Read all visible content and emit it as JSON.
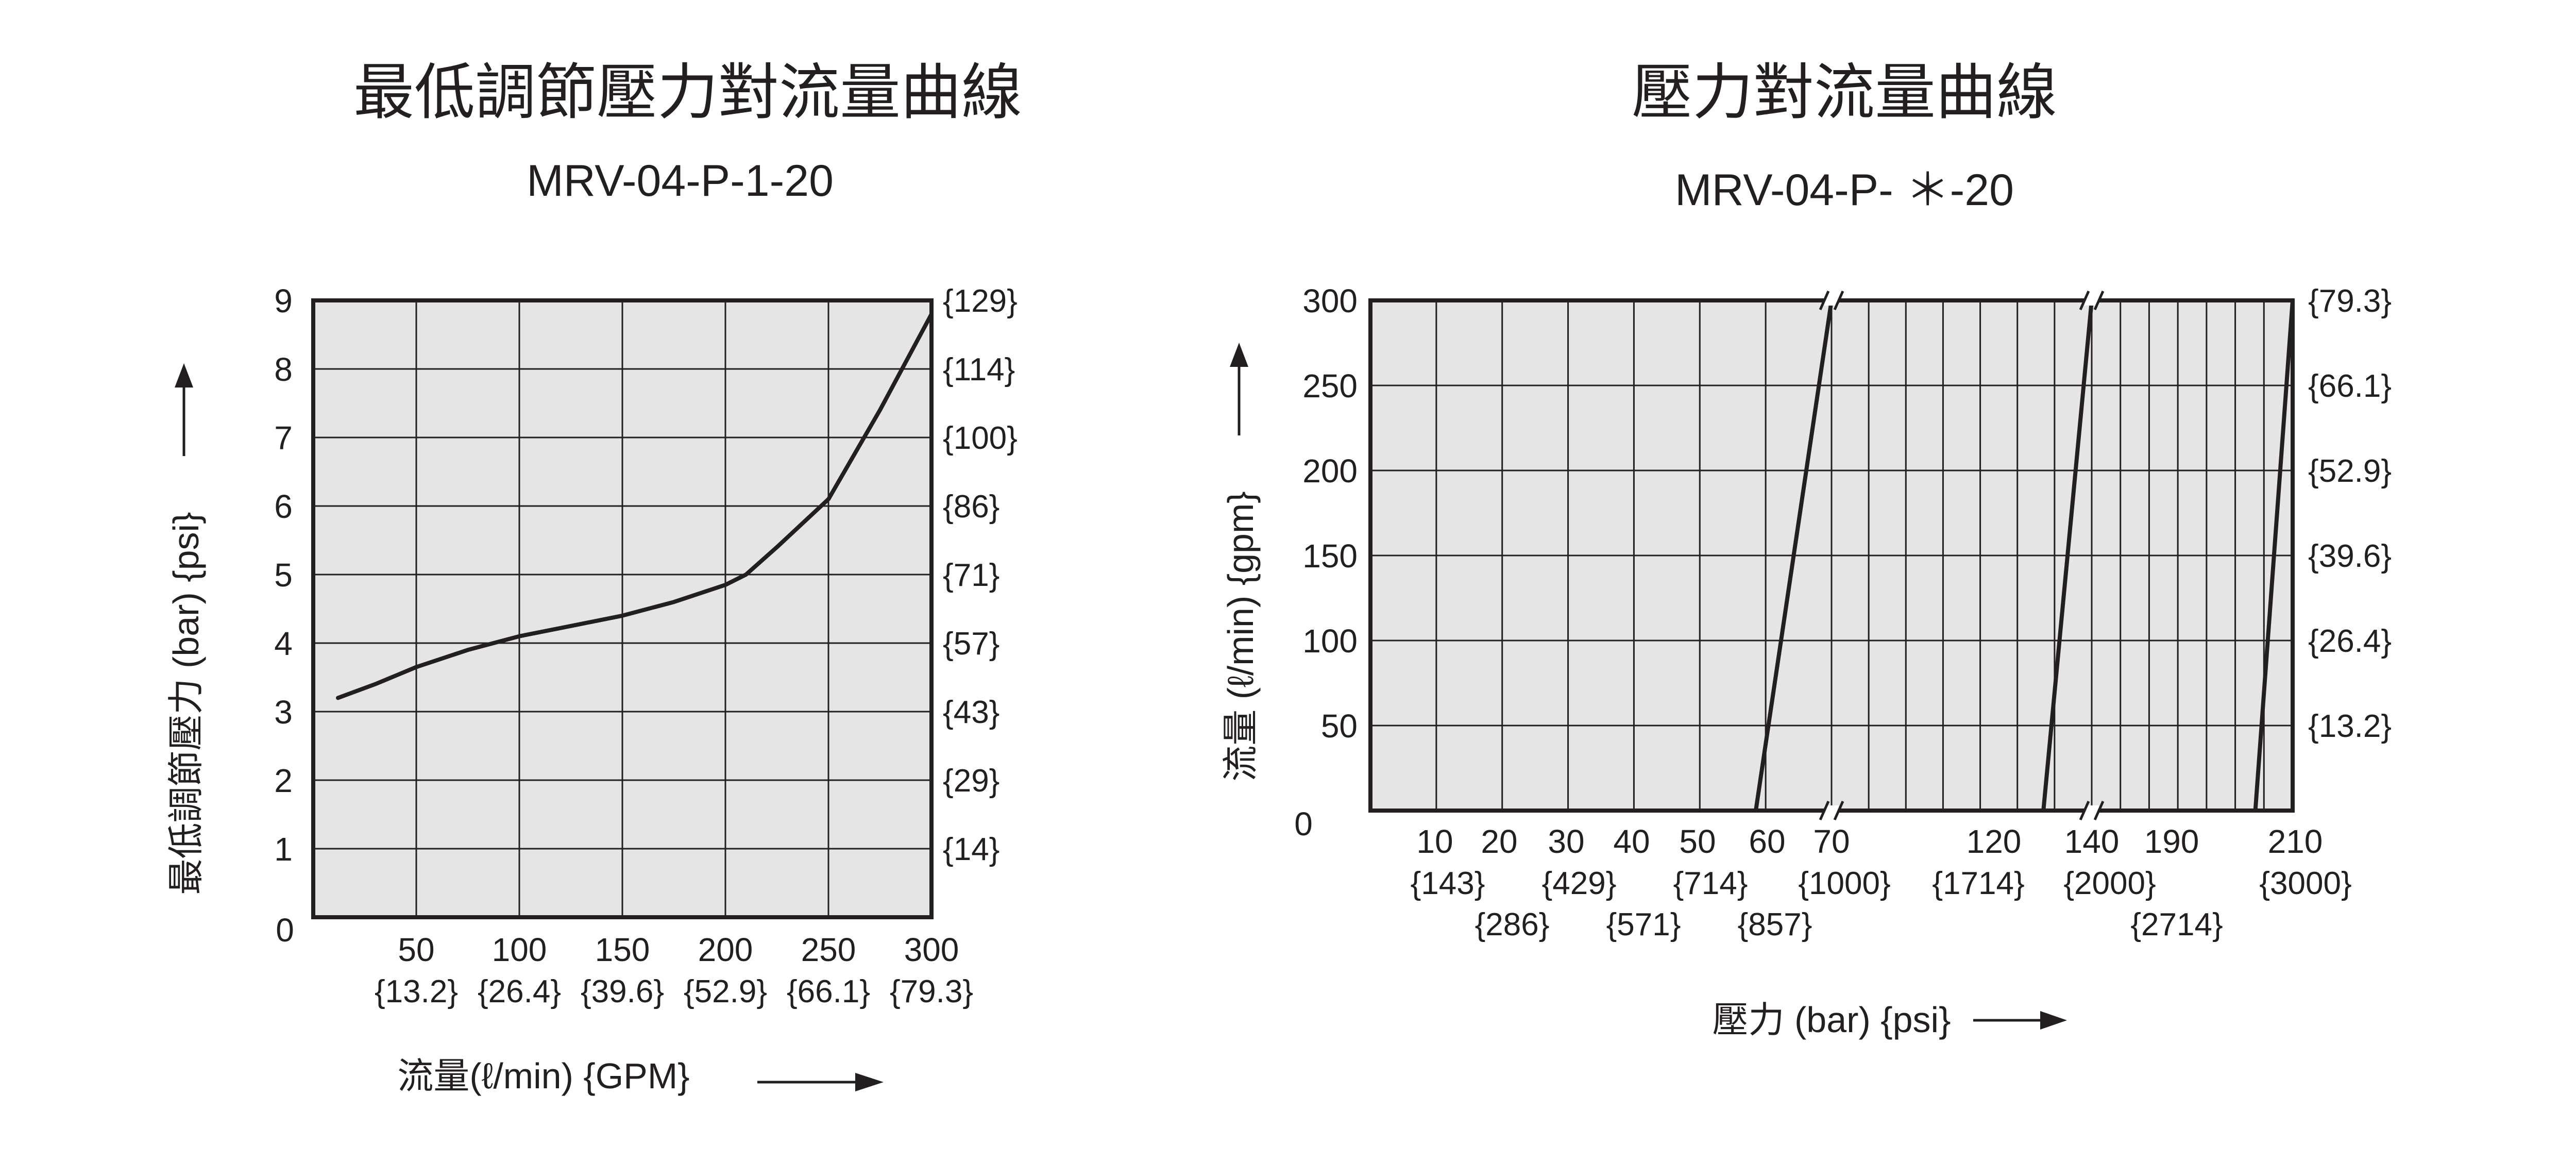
{
  "chart_data": [
    {
      "type": "line",
      "title": "最低調節壓力對流量曲線",
      "subtitle": "MRV-04-P-1-20",
      "xlabel": "流量(ℓ/min) {GPM}",
      "ylabel": "最低調節壓力 (bar) {psi}",
      "xlim": [
        0,
        300
      ],
      "ylim": [
        0,
        9
      ],
      "grid": true,
      "x_ticks": [
        {
          "value": 0,
          "label": "0"
        },
        {
          "value": 50,
          "label": "50"
        },
        {
          "value": 100,
          "label": "100"
        },
        {
          "value": 150,
          "label": "150"
        },
        {
          "value": 200,
          "label": "200"
        },
        {
          "value": 250,
          "label": "250"
        },
        {
          "value": 300,
          "label": "300"
        }
      ],
      "x_secondary_ticks": [
        {
          "value": 50,
          "label": "{13.2}"
        },
        {
          "value": 100,
          "label": "{26.4}"
        },
        {
          "value": 150,
          "label": "{39.6}"
        },
        {
          "value": 200,
          "label": "{52.9}"
        },
        {
          "value": 250,
          "label": "{66.1}"
        },
        {
          "value": 300,
          "label": "{79.3}"
        }
      ],
      "y_ticks": [
        "1",
        "2",
        "3",
        "4",
        "5",
        "6",
        "7",
        "8",
        "9"
      ],
      "y_tick_values": [
        1,
        2,
        3,
        4,
        5,
        6,
        7,
        8,
        9
      ],
      "y_right_ticks": [
        {
          "value": 1,
          "label": "{14}"
        },
        {
          "value": 2,
          "label": "{29}"
        },
        {
          "value": 3,
          "label": "{43}"
        },
        {
          "value": 4,
          "label": "{57}"
        },
        {
          "value": 5,
          "label": "{71}"
        },
        {
          "value": 6,
          "label": "{86}"
        },
        {
          "value": 7,
          "label": "{100}"
        },
        {
          "value": 8,
          "label": "{114}"
        },
        {
          "value": 9,
          "label": "{129}"
        }
      ],
      "series": [
        {
          "x": [
            12,
            30,
            50,
            75,
            100,
            125,
            150,
            175,
            200,
            210,
            225,
            250,
            275,
            300
          ],
          "y": [
            3.2,
            3.4,
            3.65,
            3.9,
            4.1,
            4.25,
            4.4,
            4.6,
            4.85,
            5.0,
            5.4,
            6.1,
            7.4,
            8.8
          ]
        }
      ]
    },
    {
      "type": "line",
      "title": "壓力對流量曲線",
      "subtitle": "MRV-04-P- ＊-20",
      "xlabel": "壓力 (bar) {psi}",
      "ylabel": "流量 (ℓ/min) {gpm}",
      "ylim": [
        0,
        300
      ],
      "grid": true,
      "x_axis_note": "broken axis: 0–70, 70–140, 140–210",
      "x_ticks": [
        {
          "value": 10,
          "label": "10"
        },
        {
          "value": 20,
          "label": "20"
        },
        {
          "value": 30,
          "label": "30"
        },
        {
          "value": 40,
          "label": "40"
        },
        {
          "value": 50,
          "label": "50"
        },
        {
          "value": 60,
          "label": "60"
        },
        {
          "value": 70,
          "label": "70"
        },
        {
          "value": 120,
          "label": "120"
        },
        {
          "value": 140,
          "label": "140"
        },
        {
          "value": 190,
          "label": "190"
        },
        {
          "value": 210,
          "label": "210"
        }
      ],
      "x_secondary_ticks": [
        {
          "value": 10,
          "label": "{143}"
        },
        {
          "value": 20,
          "label": "{286}"
        },
        {
          "value": 30,
          "label": "{429}"
        },
        {
          "value": 40,
          "label": "{571}"
        },
        {
          "value": 50,
          "label": "{714}"
        },
        {
          "value": 60,
          "label": "{857}"
        },
        {
          "value": 70,
          "label": "{1000}"
        },
        {
          "value": 120,
          "label": "{1714}"
        },
        {
          "value": 140,
          "label": "{2000}"
        },
        {
          "value": 190,
          "label": "{2714}"
        },
        {
          "value": 210,
          "label": "{3000}"
        }
      ],
      "y_ticks": [
        "0",
        "50",
        "100",
        "150",
        "200",
        "250",
        "300"
      ],
      "y_tick_values": [
        0,
        50,
        100,
        150,
        200,
        250,
        300
      ],
      "y_right_ticks": [
        {
          "value": 50,
          "label": "{13.2}"
        },
        {
          "value": 100,
          "label": "{26.4}"
        },
        {
          "value": 150,
          "label": "{39.6}"
        },
        {
          "value": 200,
          "label": "{52.9}"
        },
        {
          "value": 250,
          "label": "{66.1}"
        },
        {
          "value": 300,
          "label": "{79.3}"
        }
      ],
      "series": [
        {
          "x": [
            58.5,
            70
          ],
          "y": [
            0,
            300
          ]
        },
        {
          "x": [
            127,
            140
          ],
          "y": [
            0,
            300
          ]
        },
        {
          "x": [
            197,
            210
          ],
          "y": [
            0,
            300
          ]
        }
      ]
    }
  ]
}
